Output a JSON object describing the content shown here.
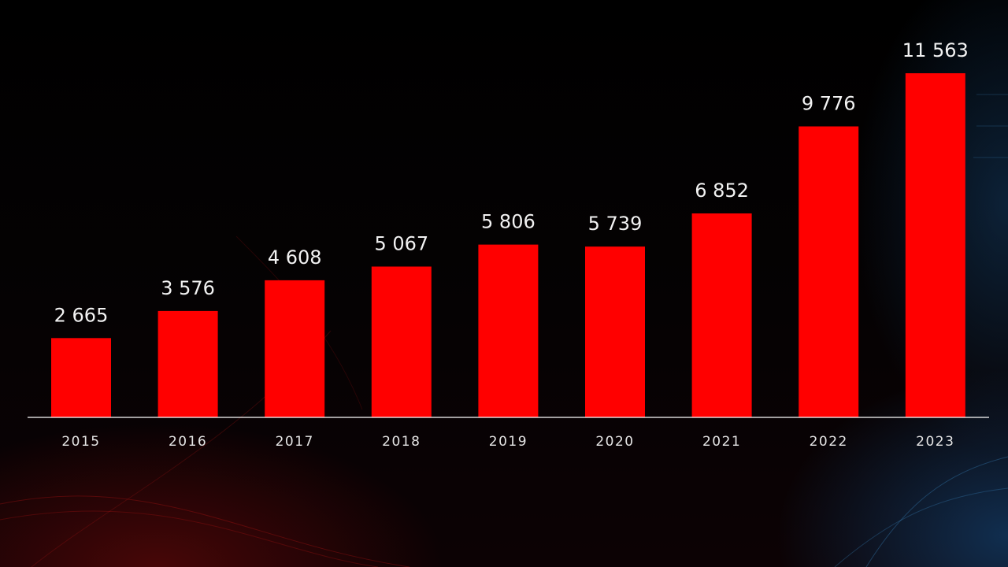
{
  "colors": {
    "bar": "#ff0000",
    "background": "#000000",
    "text": "#f2f2f2"
  },
  "chart_data": {
    "type": "bar",
    "title": "",
    "xlabel": "",
    "ylabel": "",
    "categories": [
      "2015",
      "2016",
      "2017",
      "2018",
      "2019",
      "2020",
      "2021",
      "2022",
      "2023"
    ],
    "values": [
      2665,
      3576,
      4608,
      5067,
      5806,
      5739,
      6852,
      9776,
      11563
    ],
    "data_labels": [
      "2 665",
      "3 576",
      "4 608",
      "5 067",
      "5 806",
      "5 739",
      "6 852",
      "9 776",
      "11 563"
    ],
    "ylim": [
      0,
      11563
    ],
    "grid": false,
    "legend": "none"
  }
}
